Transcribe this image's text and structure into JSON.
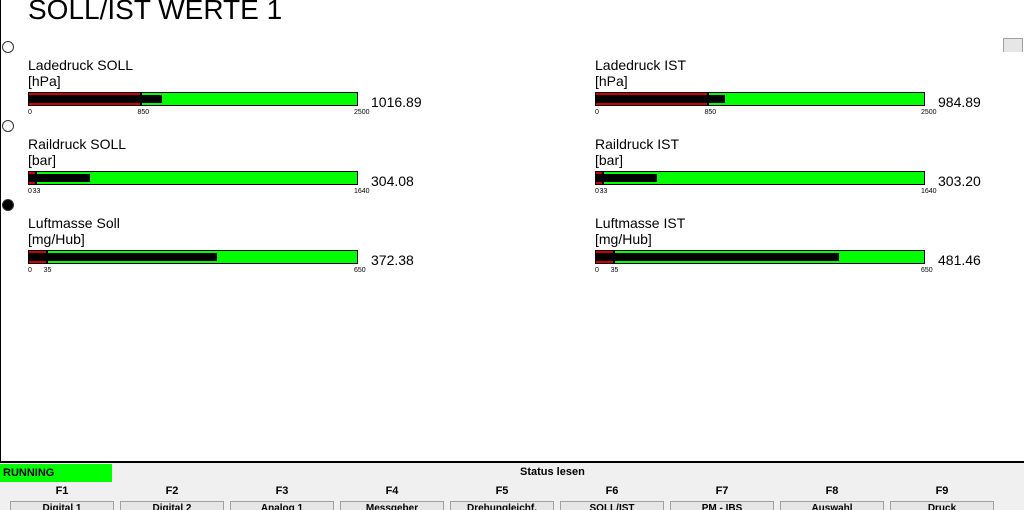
{
  "page_title": "SOLL/IST WERTE 1",
  "gauges": [
    {
      "name": "Ladedruck SOLL",
      "unit": "[hPa]",
      "value": "1016.89",
      "scale": [
        "0",
        "850",
        "2500"
      ],
      "min": 0,
      "max": 2500,
      "mark": 850,
      "current": 1016.89
    },
    {
      "name": "Ladedruck IST",
      "unit": "[hPa]",
      "value": "984.89",
      "scale": [
        "0",
        "850",
        "2500"
      ],
      "min": 0,
      "max": 2500,
      "mark": 850,
      "current": 984.89
    },
    {
      "name": "Raildruck SOLL",
      "unit": "[bar]",
      "value": "304.08",
      "scale": [
        "0",
        "33",
        "1640"
      ],
      "min": 0,
      "max": 1640,
      "mark": 33,
      "current": 304.08
    },
    {
      "name": "Raildruck IST",
      "unit": "[bar]",
      "value": "303.20",
      "scale": [
        "0",
        "33",
        "1640"
      ],
      "min": 0,
      "max": 1640,
      "mark": 33,
      "current": 303.2
    },
    {
      "name": "Luftmasse Soll",
      "unit": "[mg/Hub]",
      "value": "372.38",
      "scale": [
        "0",
        "35",
        "650"
      ],
      "min": 0,
      "max": 650,
      "mark": 35,
      "current": 372.38
    },
    {
      "name": "Luftmasse IST",
      "unit": "[mg/Hub]",
      "value": "481.46",
      "scale": [
        "0",
        "35",
        "650"
      ],
      "min": 0,
      "max": 650,
      "mark": 35,
      "current": 481.46
    }
  ],
  "status": {
    "running": "RUNNING",
    "read": "Status lesen"
  },
  "fkeys": [
    {
      "key": "F1",
      "label": "Digital 1"
    },
    {
      "key": "F2",
      "label": "Digital 2"
    },
    {
      "key": "F3",
      "label": "Analog 1"
    },
    {
      "key": "F4",
      "label": "Messgeber"
    },
    {
      "key": "F5",
      "label": "Drehungleichf."
    },
    {
      "key": "F6",
      "label": "SOLL/IST"
    },
    {
      "key": "F7",
      "label": "PM - IBS"
    },
    {
      "key": "F8",
      "label": "Auswahl"
    },
    {
      "key": "F9",
      "label": "Druck"
    }
  ],
  "colors": {
    "bar_green": "#00ff00",
    "bar_fill": "#000000",
    "bar_marker": "#cc0000",
    "running_green": "#00ff00"
  }
}
